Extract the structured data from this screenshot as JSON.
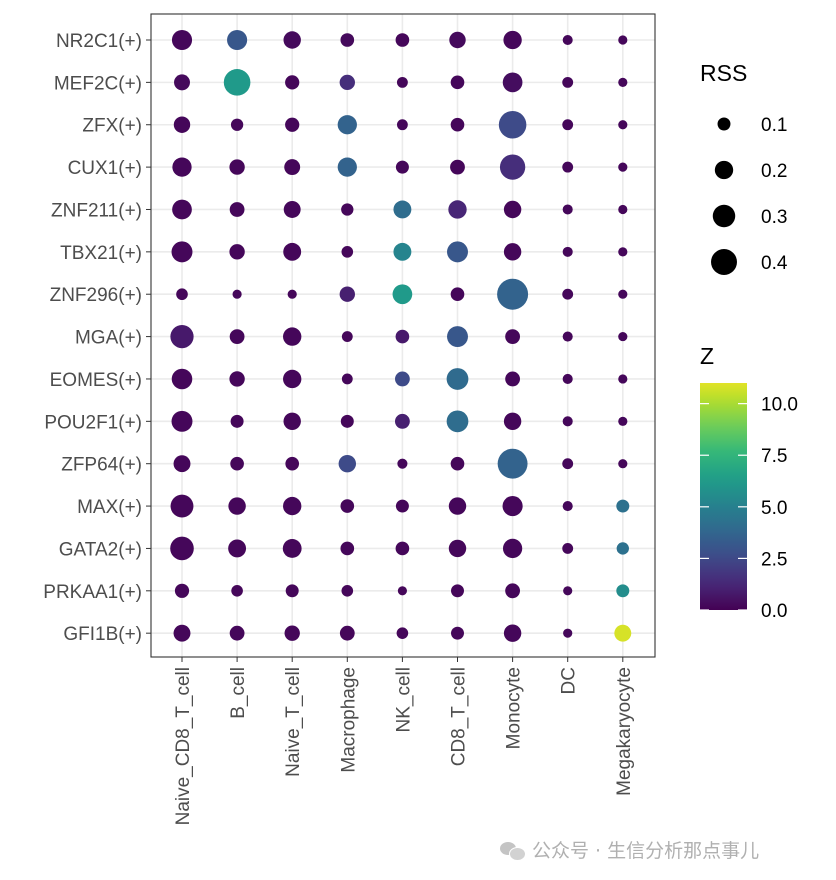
{
  "chart_data": {
    "type": "scatter",
    "subtype": "dot-plot",
    "rows": [
      "NR2C1(+)",
      "MEF2C(+)",
      "ZFX(+)",
      "CUX1(+)",
      "ZNF211(+)",
      "TBX21(+)",
      "ZNF296(+)",
      "MGA(+)",
      "EOMES(+)",
      "POU2F1(+)",
      "ZFP64(+)",
      "MAX(+)",
      "GATA2(+)",
      "PRKAA1(+)",
      "GFI1B(+)"
    ],
    "columns": [
      "Naive_CD8_T_cell",
      "B_cell",
      "Naive_T_cell",
      "Macrophage",
      "NK_cell",
      "CD8_T_cell",
      "Monocyte",
      "DC",
      "Megakaryocyte"
    ],
    "rss": [
      [
        0.24,
        0.24,
        0.18,
        0.11,
        0.11,
        0.16,
        0.2,
        0.06,
        0.05
      ],
      [
        0.15,
        0.42,
        0.12,
        0.14,
        0.07,
        0.11,
        0.23,
        0.07,
        0.05
      ],
      [
        0.16,
        0.09,
        0.12,
        0.22,
        0.07,
        0.11,
        0.45,
        0.07,
        0.05
      ],
      [
        0.22,
        0.14,
        0.15,
        0.22,
        0.1,
        0.13,
        0.38,
        0.07,
        0.05
      ],
      [
        0.23,
        0.13,
        0.17,
        0.09,
        0.19,
        0.2,
        0.18,
        0.06,
        0.05
      ],
      [
        0.26,
        0.14,
        0.19,
        0.08,
        0.19,
        0.26,
        0.18,
        0.06,
        0.05
      ],
      [
        0.08,
        0.05,
        0.05,
        0.14,
        0.23,
        0.11,
        0.57,
        0.07,
        0.05
      ],
      [
        0.32,
        0.13,
        0.2,
        0.07,
        0.11,
        0.26,
        0.13,
        0.06,
        0.05
      ],
      [
        0.25,
        0.14,
        0.2,
        0.07,
        0.13,
        0.28,
        0.13,
        0.06,
        0.05
      ],
      [
        0.26,
        0.1,
        0.18,
        0.1,
        0.13,
        0.28,
        0.18,
        0.06,
        0.05
      ],
      [
        0.17,
        0.11,
        0.11,
        0.18,
        0.06,
        0.11,
        0.53,
        0.07,
        0.05
      ],
      [
        0.31,
        0.18,
        0.2,
        0.11,
        0.1,
        0.18,
        0.24,
        0.06,
        0.1
      ],
      [
        0.33,
        0.19,
        0.21,
        0.11,
        0.11,
        0.18,
        0.22,
        0.07,
        0.09
      ],
      [
        0.12,
        0.08,
        0.1,
        0.08,
        0.05,
        0.1,
        0.13,
        0.05,
        0.1
      ],
      [
        0.17,
        0.13,
        0.14,
        0.13,
        0.08,
        0.1,
        0.18,
        0.05,
        0.17
      ]
    ],
    "z": [
      [
        0.2,
        3.1,
        0.3,
        0.3,
        0.2,
        0.3,
        0.2,
        0.2,
        0.2
      ],
      [
        0.3,
        6.2,
        0.2,
        1.5,
        0.2,
        0.2,
        0.4,
        0.2,
        0.2
      ],
      [
        0.2,
        0.2,
        0.2,
        3.6,
        0.2,
        0.2,
        2.6,
        0.2,
        0.2
      ],
      [
        0.2,
        0.2,
        0.2,
        3.6,
        0.2,
        0.2,
        1.5,
        0.2,
        0.2
      ],
      [
        0.2,
        0.2,
        0.2,
        0.2,
        4.1,
        1.2,
        0.2,
        0.2,
        0.2
      ],
      [
        0.2,
        0.2,
        0.2,
        0.2,
        5.2,
        3.1,
        0.2,
        0.2,
        0.2
      ],
      [
        0.2,
        0.2,
        0.2,
        1.0,
        6.2,
        0.2,
        3.6,
        0.2,
        0.2
      ],
      [
        0.8,
        0.2,
        0.2,
        0.2,
        0.8,
        3.1,
        0.2,
        0.2,
        0.2
      ],
      [
        0.2,
        0.2,
        0.2,
        0.2,
        2.6,
        4.0,
        0.2,
        0.2,
        0.2
      ],
      [
        0.2,
        0.2,
        0.2,
        0.2,
        1.0,
        4.1,
        0.2,
        0.2,
        0.2
      ],
      [
        0.2,
        0.2,
        0.2,
        2.6,
        0.2,
        0.2,
        3.6,
        0.2,
        0.2
      ],
      [
        0.2,
        0.2,
        0.2,
        0.2,
        0.2,
        0.2,
        0.2,
        0.2,
        4.3
      ],
      [
        0.2,
        0.2,
        0.2,
        0.2,
        0.2,
        0.2,
        0.2,
        0.2,
        4.3
      ],
      [
        0.2,
        0.2,
        0.2,
        0.2,
        0.2,
        0.2,
        0.2,
        0.2,
        5.6
      ],
      [
        0.2,
        0.2,
        0.2,
        0.2,
        0.2,
        0.2,
        0.2,
        0.2,
        10.8
      ]
    ],
    "legend_size": {
      "title": "RSS",
      "values": [
        0.1,
        0.2,
        0.3,
        0.4
      ],
      "labels": [
        "0.1",
        "0.2",
        "0.3",
        "0.4"
      ]
    },
    "legend_color": {
      "title": "Z",
      "ticks": [
        0.0,
        2.5,
        5.0,
        7.5,
        10.0
      ],
      "labels": [
        "0.0",
        "2.5",
        "5.0",
        "7.5",
        "10.0"
      ],
      "range": [
        0,
        11
      ],
      "colormap": "viridis"
    },
    "grid": true,
    "legend_placement": "right"
  },
  "watermark": {
    "text": "公众号 · 生信分析那点事儿",
    "icon": "wechat-icon"
  }
}
